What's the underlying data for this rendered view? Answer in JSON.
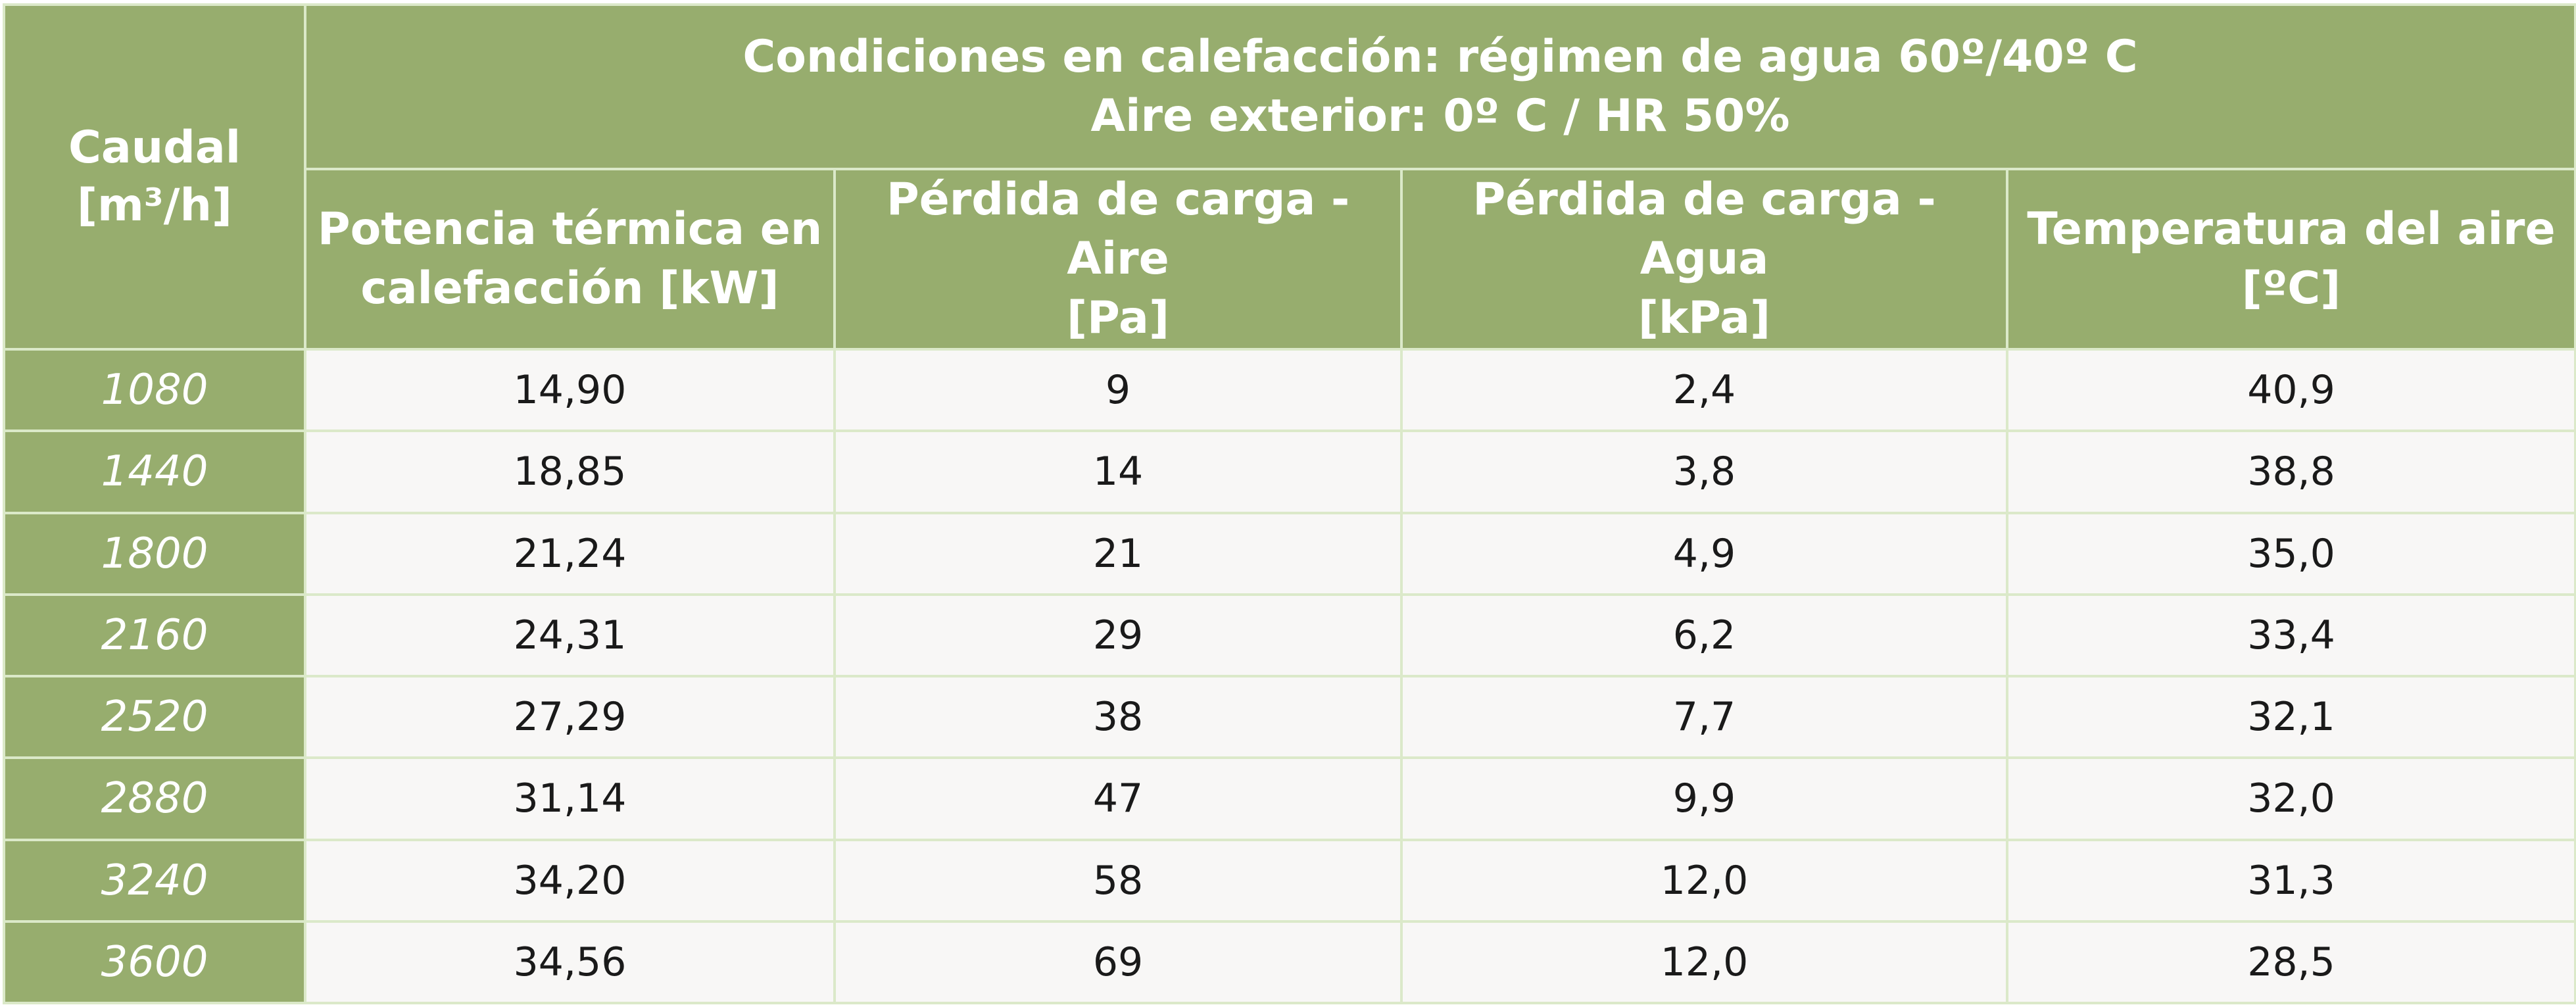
{
  "table": {
    "caudal_header": {
      "line1": "Caudal",
      "line2": "[m³/h]"
    },
    "conditions_header": {
      "line1": "Condiciones en calefacción: régimen de agua 60º/40º C",
      "line2": "Aire exterior: 0º C / HR 50%"
    },
    "columns": [
      {
        "line1": "Potencia térmica en",
        "line2": "calefacción  [kW]"
      },
      {
        "line1": "Pérdida de carga - Aire",
        "line2": "[Pa]"
      },
      {
        "line1": "Pérdida de carga - Agua",
        "line2": "[kPa]"
      },
      {
        "line1": "Temperatura del aire",
        "line2": "[ºC]"
      }
    ],
    "rows": [
      {
        "caudal": "1080",
        "potencia": "14,90",
        "perdida_aire": "9",
        "perdida_agua": "2,4",
        "temperatura": "40,9"
      },
      {
        "caudal": "1440",
        "potencia": "18,85",
        "perdida_aire": "14",
        "perdida_agua": "3,8",
        "temperatura": "38,8"
      },
      {
        "caudal": "1800",
        "potencia": "21,24",
        "perdida_aire": "21",
        "perdida_agua": "4,9",
        "temperatura": "35,0"
      },
      {
        "caudal": "2160",
        "potencia": "24,31",
        "perdida_aire": "29",
        "perdida_agua": "6,2",
        "temperatura": "33,4"
      },
      {
        "caudal": "2520",
        "potencia": "27,29",
        "perdida_aire": "38",
        "perdida_agua": "7,7",
        "temperatura": "32,1"
      },
      {
        "caudal": "2880",
        "potencia": "31,14",
        "perdida_aire": "47",
        "perdida_agua": "9,9",
        "temperatura": "32,0"
      },
      {
        "caudal": "3240",
        "potencia": "34,20",
        "perdida_aire": "58",
        "perdida_agua": "12,0",
        "temperatura": "31,3"
      },
      {
        "caudal": "3600",
        "potencia": "34,56",
        "perdida_aire": "69",
        "perdida_agua": "12,0",
        "temperatura": "28,5"
      }
    ]
  },
  "colors": {
    "header_green": "#97ad6e",
    "grid_line": "#dbe9c9",
    "cell_background": "#f8f7f6"
  }
}
